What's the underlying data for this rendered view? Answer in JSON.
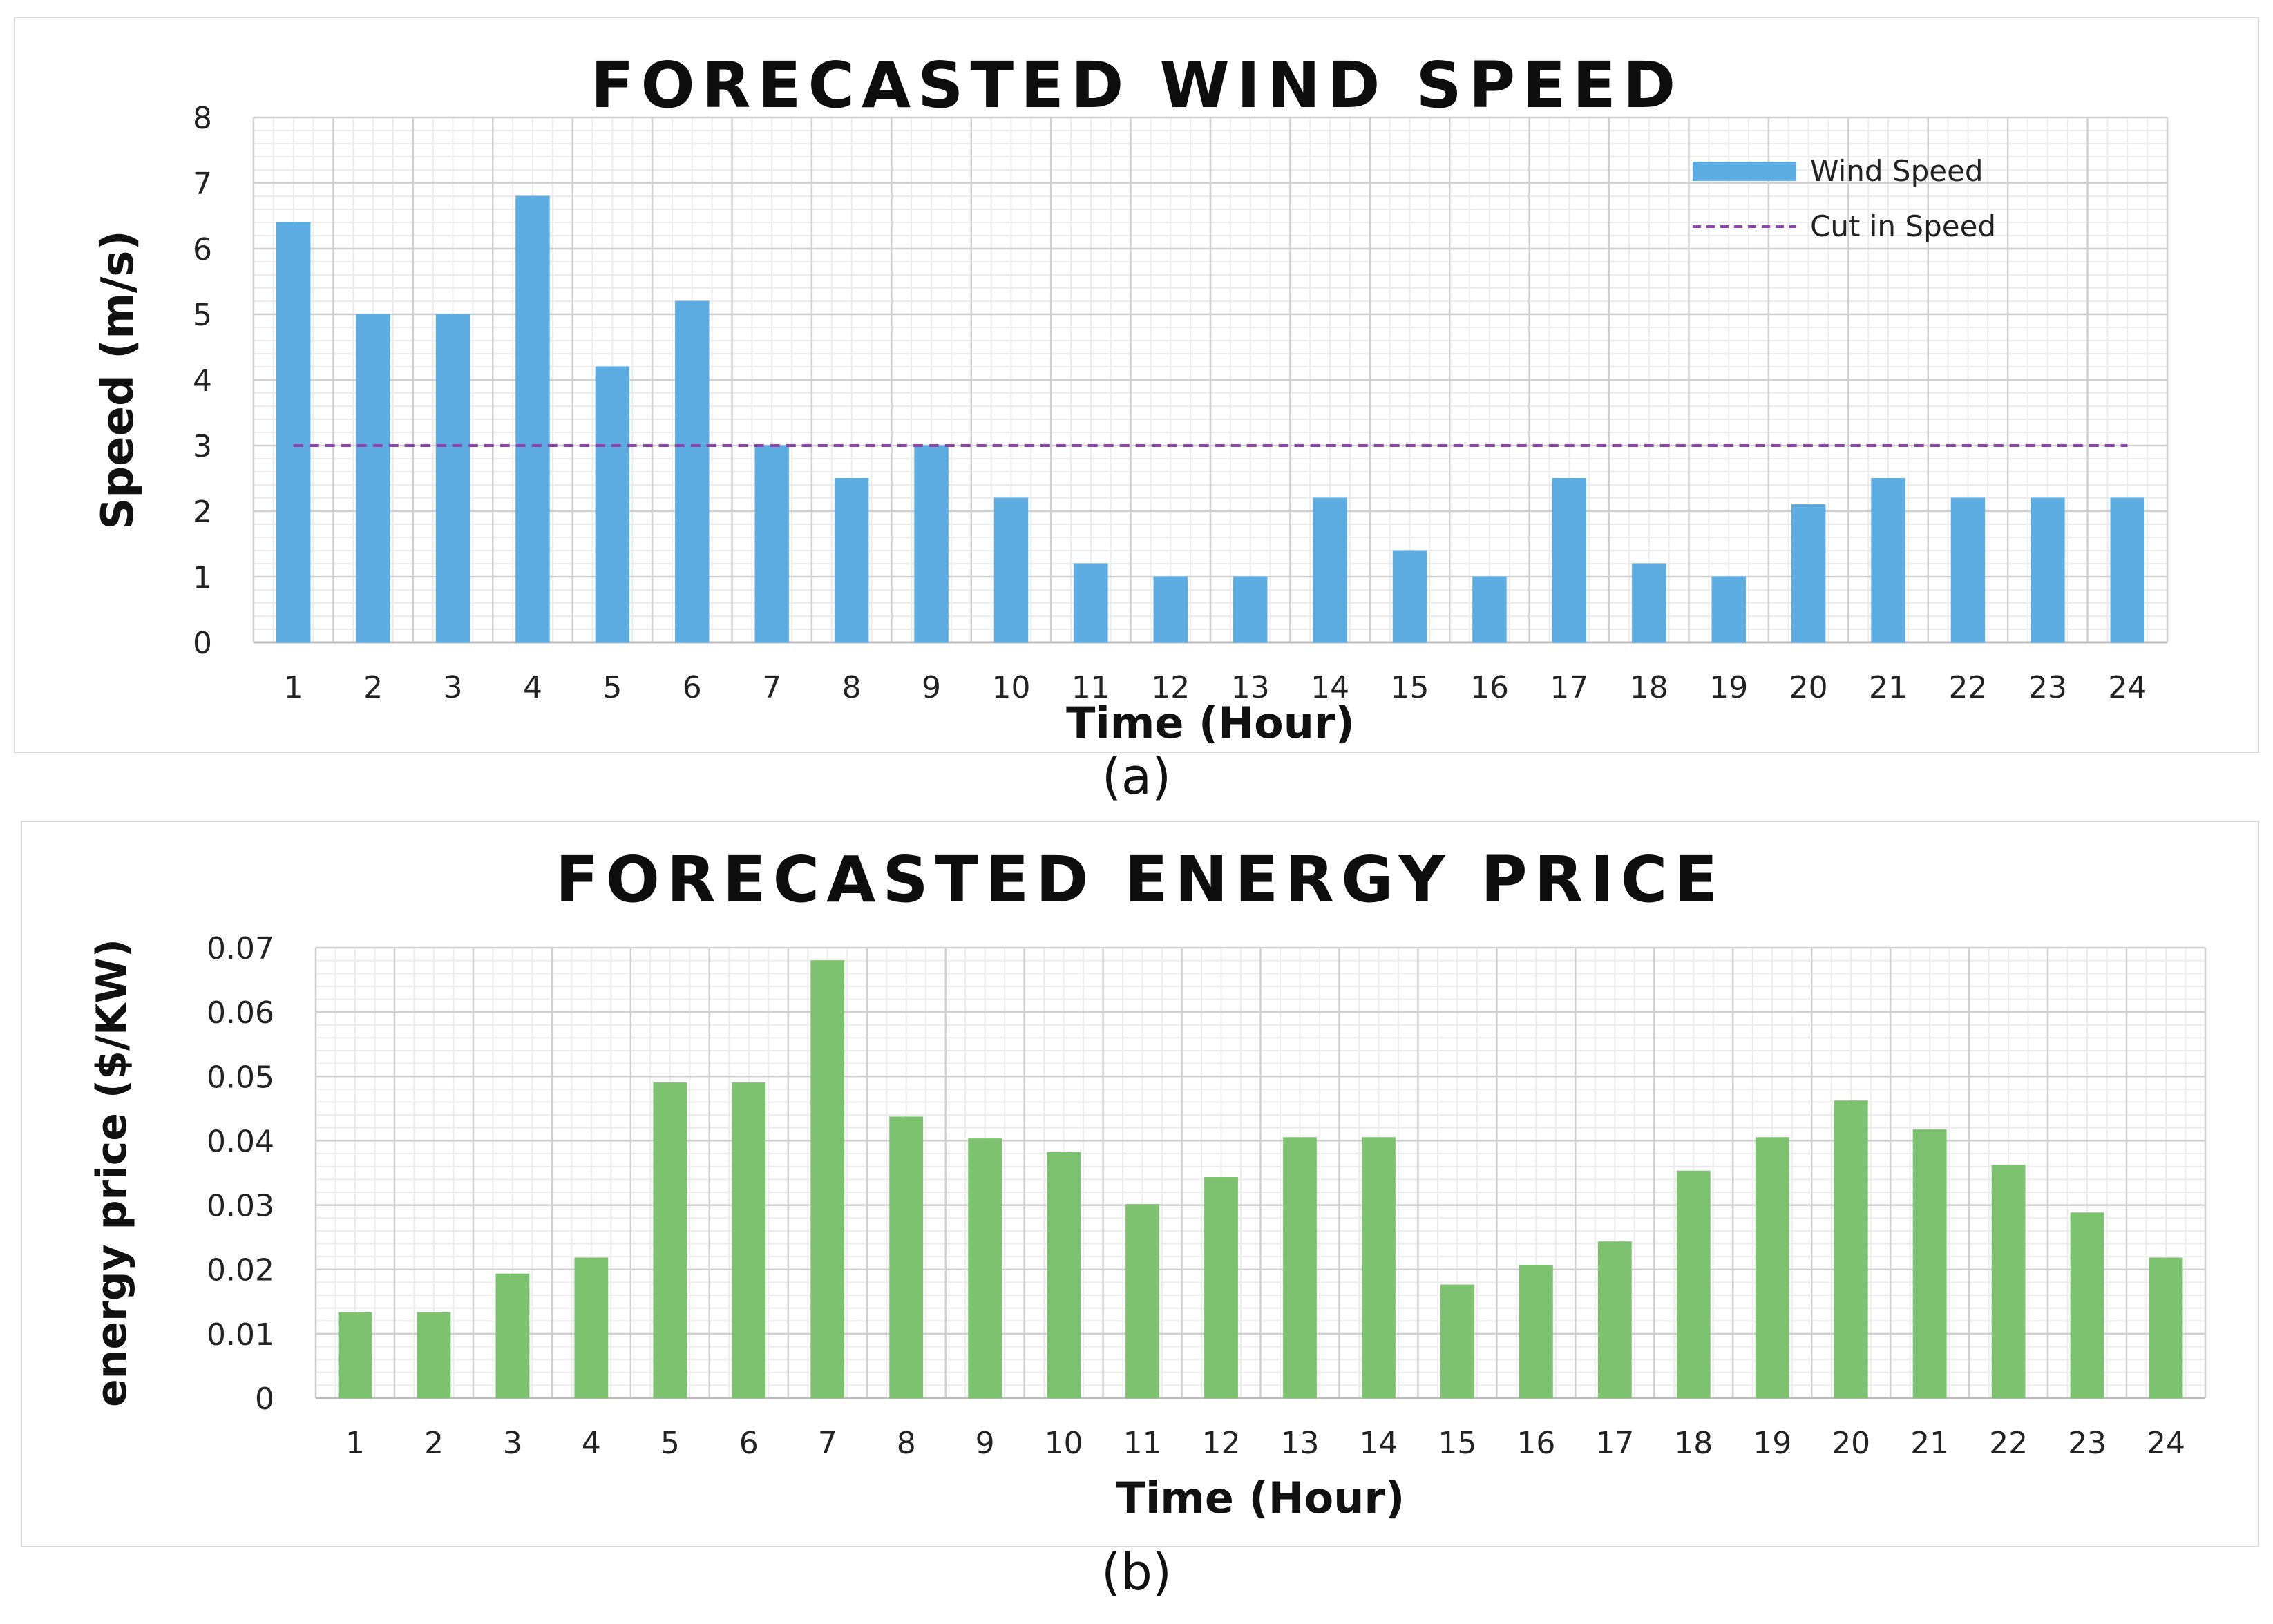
{
  "captions": {
    "a": "(a)",
    "b": "(b)"
  },
  "chart_data": [
    {
      "type": "bar",
      "title": "FORECASTED WIND SPEED",
      "xlabel": "Time (Hour)",
      "ylabel": "Speed (m/s)",
      "categories": [
        "1",
        "2",
        "3",
        "4",
        "5",
        "6",
        "7",
        "8",
        "9",
        "10",
        "11",
        "12",
        "13",
        "14",
        "15",
        "16",
        "17",
        "18",
        "19",
        "20",
        "21",
        "22",
        "23",
        "24"
      ],
      "series": [
        {
          "name": "Wind Speed",
          "type": "bar",
          "color": "#5DADE2",
          "values": [
            6.4,
            5.0,
            5.0,
            6.8,
            4.2,
            5.2,
            3.0,
            2.5,
            3.0,
            2.2,
            1.2,
            1.0,
            1.0,
            2.2,
            1.4,
            1.0,
            2.5,
            1.2,
            1.0,
            2.1,
            2.5,
            2.2,
            2.2,
            2.2
          ]
        },
        {
          "name": "Cut in Speed",
          "type": "line",
          "style": "dashed",
          "color": "#8E44AD",
          "values": [
            3,
            3,
            3,
            3,
            3,
            3,
            3,
            3,
            3,
            3,
            3,
            3,
            3,
            3,
            3,
            3,
            3,
            3,
            3,
            3,
            3,
            3,
            3,
            3
          ]
        }
      ],
      "ylim": [
        0,
        8
      ],
      "yticks": [
        "0",
        "1",
        "2",
        "3",
        "4",
        "5",
        "6",
        "7",
        "8"
      ],
      "grid": true,
      "legend": "top-right"
    },
    {
      "type": "bar",
      "title": "FORECASTED ENERGY PRICE",
      "xlabel": "Time (Hour)",
      "ylabel": "energy price ($/KW)",
      "categories": [
        "1",
        "2",
        "3",
        "4",
        "5",
        "6",
        "7",
        "8",
        "9",
        "10",
        "11",
        "12",
        "13",
        "14",
        "15",
        "16",
        "17",
        "18",
        "19",
        "20",
        "21",
        "22",
        "23",
        "24"
      ],
      "series": [
        {
          "name": "energy price",
          "type": "bar",
          "color": "#7DC36F",
          "values": [
            0.0133,
            0.0133,
            0.0193,
            0.0218,
            0.049,
            0.049,
            0.068,
            0.0437,
            0.0403,
            0.0382,
            0.0301,
            0.0343,
            0.0405,
            0.0405,
            0.0176,
            0.0206,
            0.0243,
            0.0353,
            0.0405,
            0.0462,
            0.0417,
            0.0362,
            0.0288,
            0.0218
          ]
        }
      ],
      "ylim": [
        0,
        0.07
      ],
      "yticks": [
        "0",
        "0.01",
        "0.02",
        "0.03",
        "0.04",
        "0.05",
        "0.06",
        "0.07"
      ],
      "grid": true,
      "legend": "none"
    }
  ]
}
